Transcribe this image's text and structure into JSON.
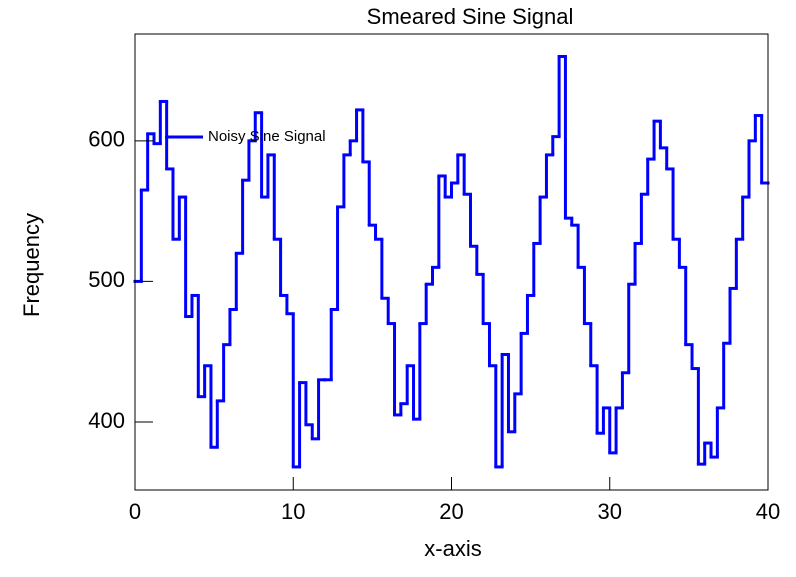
{
  "chart_data": {
    "type": "histogram",
    "title": "Smeared Sine Signal",
    "x_label": "x-axis",
    "y_label": "Frequency",
    "bins": [
      0,
      0.4,
      0.8,
      1.2,
      1.6,
      2,
      2.4,
      2.8,
      3.2,
      3.6,
      4,
      4.4,
      4.8,
      5.2,
      5.6,
      6,
      6.4,
      6.8,
      7.2,
      7.6,
      8,
      8.4,
      8.8,
      9.2,
      9.6,
      10,
      10.4,
      10.8,
      11.2,
      11.6,
      12,
      12.4,
      12.8,
      13.2,
      13.6,
      14,
      14.4,
      14.8,
      15.2,
      15.6,
      16,
      16.4,
      16.8,
      17.2,
      17.6,
      18,
      18.4,
      18.8,
      19.2,
      19.6,
      20,
      20.4,
      20.8,
      21.2,
      21.6,
      22,
      22.4,
      22.8,
      23.2,
      23.6,
      24,
      24.4,
      24.8,
      25.2,
      25.6,
      26,
      26.4,
      26.8,
      27.2,
      27.6,
      28,
      28.4,
      28.8,
      29.2,
      29.6,
      30,
      30.4,
      30.8,
      31.2,
      31.6,
      32,
      32.4,
      32.8,
      33.2,
      33.6,
      34,
      34.4,
      34.8,
      35.2,
      35.6,
      36,
      36.4,
      36.8,
      37.2,
      37.6,
      38,
      38.4,
      38.8,
      39.2,
      39.6,
      40
    ],
    "series": [
      {
        "name": "Noisy Sine Signal",
        "color": "#0000ff",
        "values": [
          500,
          565,
          605,
          598,
          628,
          580,
          530,
          560,
          475,
          490,
          418,
          440,
          382,
          415,
          455,
          480,
          520,
          572,
          600,
          620,
          560,
          590,
          530,
          490,
          477,
          368,
          428,
          398,
          388,
          430,
          430,
          480,
          553,
          590,
          600,
          622,
          585,
          540,
          530,
          488,
          470,
          405,
          413,
          440,
          402,
          470,
          498,
          510,
          575,
          560,
          570,
          590,
          562,
          525,
          505,
          470,
          440,
          368,
          448,
          393,
          420,
          463,
          490,
          527,
          560,
          590,
          603,
          660,
          545,
          540,
          510,
          470,
          440,
          392,
          410,
          378,
          410,
          435,
          498,
          527,
          562,
          587,
          614,
          595,
          580,
          530,
          510,
          455,
          438,
          370,
          385,
          375,
          410,
          456,
          495,
          530,
          560,
          600,
          618,
          570
        ]
      }
    ],
    "xlim": [
      0,
      40
    ],
    "ylim": [
      351.6,
      676
    ],
    "xticks": [
      0,
      10,
      20,
      30,
      40
    ],
    "yticks": [
      400,
      500,
      600
    ],
    "legend": "upper left"
  }
}
